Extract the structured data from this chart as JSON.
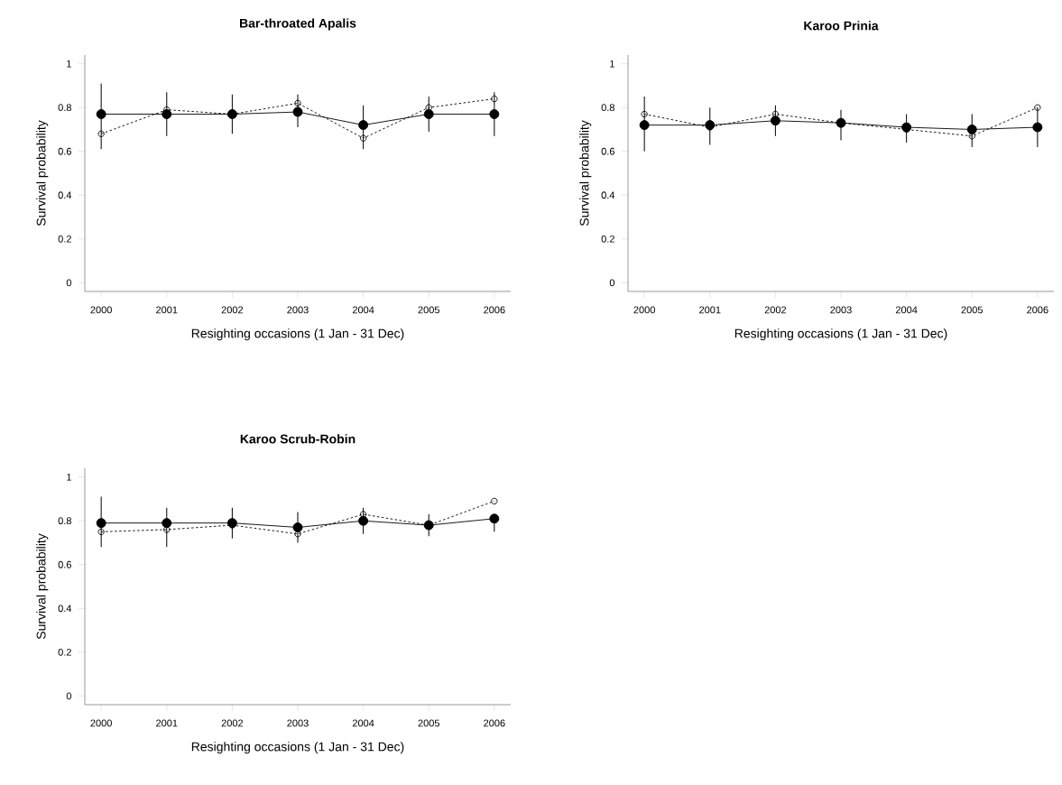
{
  "chart_data": [
    {
      "type": "line",
      "title": "Bar-throated Apalis",
      "xlabel": "Resighting occasions (1 Jan - 31 Dec)",
      "ylabel": "Survival probability",
      "categories": [
        "2000",
        "2001",
        "2002",
        "2003",
        "2004",
        "2005",
        "2006"
      ],
      "ylim": [
        -0.04,
        1.04
      ],
      "yticks": [
        0,
        0.2,
        0.4,
        0.6,
        0.8,
        1
      ],
      "marker": "circle",
      "series": [
        {
          "color": "#000000",
          "line_style": "dotted",
          "values": [
            0.68,
            0.79,
            0.77,
            0.82,
            0.66,
            0.8,
            0.84
          ]
        },
        {
          "color": "#000000",
          "line_style": "solid",
          "values": [
            0.77,
            0.77,
            0.77,
            0.78,
            0.72,
            0.77,
            0.77
          ],
          "errors": [
            [
              0.61,
              0.91
            ],
            [
              0.67,
              0.87
            ],
            [
              0.68,
              0.86
            ],
            [
              0.71,
              0.86
            ],
            [
              0.61,
              0.81
            ],
            [
              0.69,
              0.85
            ],
            [
              0.67,
              0.87
            ]
          ]
        }
      ]
    },
    {
      "type": "line",
      "title": "Karoo Prinia",
      "xlabel": "Resighting occasions (1 Jan - 31 Dec)",
      "ylabel": "Survival probability",
      "categories": [
        "2000",
        "2001",
        "2002",
        "2003",
        "2004",
        "2005",
        "2006"
      ],
      "ylim": [
        -0.04,
        1.04
      ],
      "yticks": [
        0,
        0.2,
        0.4,
        0.6,
        0.8,
        1
      ],
      "marker": "circle",
      "series": [
        {
          "color": "#000000",
          "line_style": "dotted",
          "values": [
            0.77,
            0.71,
            0.77,
            0.73,
            0.7,
            0.67,
            0.8
          ]
        },
        {
          "color": "#000000",
          "line_style": "solid",
          "values": [
            0.72,
            0.72,
            0.74,
            0.73,
            0.71,
            0.7,
            0.71
          ],
          "errors": [
            [
              0.6,
              0.85
            ],
            [
              0.63,
              0.8
            ],
            [
              0.67,
              0.81
            ],
            [
              0.65,
              0.79
            ],
            [
              0.64,
              0.77
            ],
            [
              0.62,
              0.77
            ],
            [
              0.62,
              0.8
            ]
          ]
        }
      ]
    },
    {
      "type": "line",
      "title": "Karoo Scrub-Robin",
      "xlabel": "Resighting occasions (1 Jan - 31 Dec)",
      "ylabel": "Survival probability",
      "categories": [
        "2000",
        "2001",
        "2002",
        "2003",
        "2004",
        "2005",
        "2006"
      ],
      "ylim": [
        -0.04,
        1.04
      ],
      "yticks": [
        0,
        0.2,
        0.4,
        0.6,
        0.8,
        1
      ],
      "marker": "circle",
      "series": [
        {
          "color": "#000000",
          "line_style": "dotted",
          "values": [
            0.75,
            0.76,
            0.78,
            0.74,
            0.83,
            0.78,
            0.89
          ]
        },
        {
          "color": "#000000",
          "line_style": "solid",
          "values": [
            0.79,
            0.79,
            0.79,
            0.77,
            0.8,
            0.78,
            0.81
          ],
          "errors": [
            [
              0.68,
              0.91
            ],
            [
              0.68,
              0.86
            ],
            [
              0.72,
              0.86
            ],
            [
              0.7,
              0.84
            ],
            [
              0.74,
              0.86
            ],
            [
              0.73,
              0.83
            ],
            [
              0.75,
              0.82
            ]
          ]
        }
      ]
    }
  ]
}
